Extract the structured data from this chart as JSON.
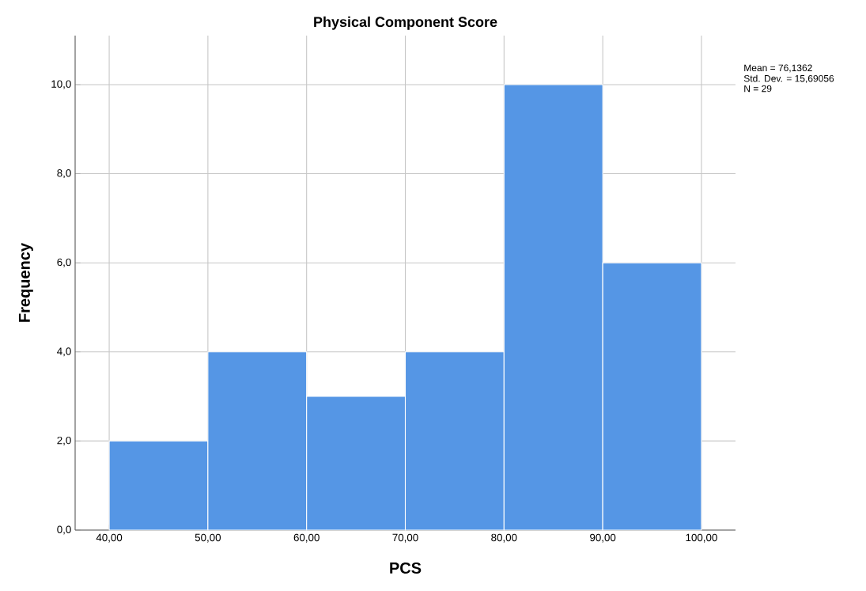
{
  "chart_data": {
    "type": "histogram",
    "title": "Physical Component Score",
    "xlabel": "PCS",
    "ylabel": "Frequency",
    "bins": [
      40,
      50,
      60,
      70,
      80,
      90,
      100
    ],
    "values": [
      2,
      4,
      3,
      4,
      10,
      6
    ],
    "color": "#5596e5",
    "xlim": [
      36.55,
      103.45
    ],
    "ylim": [
      0,
      11.1
    ],
    "xticks": [
      {
        "value": 40,
        "label": "40,00"
      },
      {
        "value": 50,
        "label": "50,00"
      },
      {
        "value": 60,
        "label": "60,00"
      },
      {
        "value": 70,
        "label": "70,00"
      },
      {
        "value": 80,
        "label": "80,00"
      },
      {
        "value": 90,
        "label": "90,00"
      },
      {
        "value": 100,
        "label": "100,00"
      }
    ],
    "yticks": [
      {
        "value": 0,
        "label": "0,0"
      },
      {
        "value": 2,
        "label": "2,0"
      },
      {
        "value": 4,
        "label": "4,0"
      },
      {
        "value": 6,
        "label": "6,0"
      },
      {
        "value": 8,
        "label": "8,0"
      },
      {
        "value": 10,
        "label": "10,0"
      }
    ],
    "grid": true,
    "annotations": [
      "Mean = 76,1362",
      "Std. Dev. = 15,69056",
      "N = 29"
    ]
  }
}
